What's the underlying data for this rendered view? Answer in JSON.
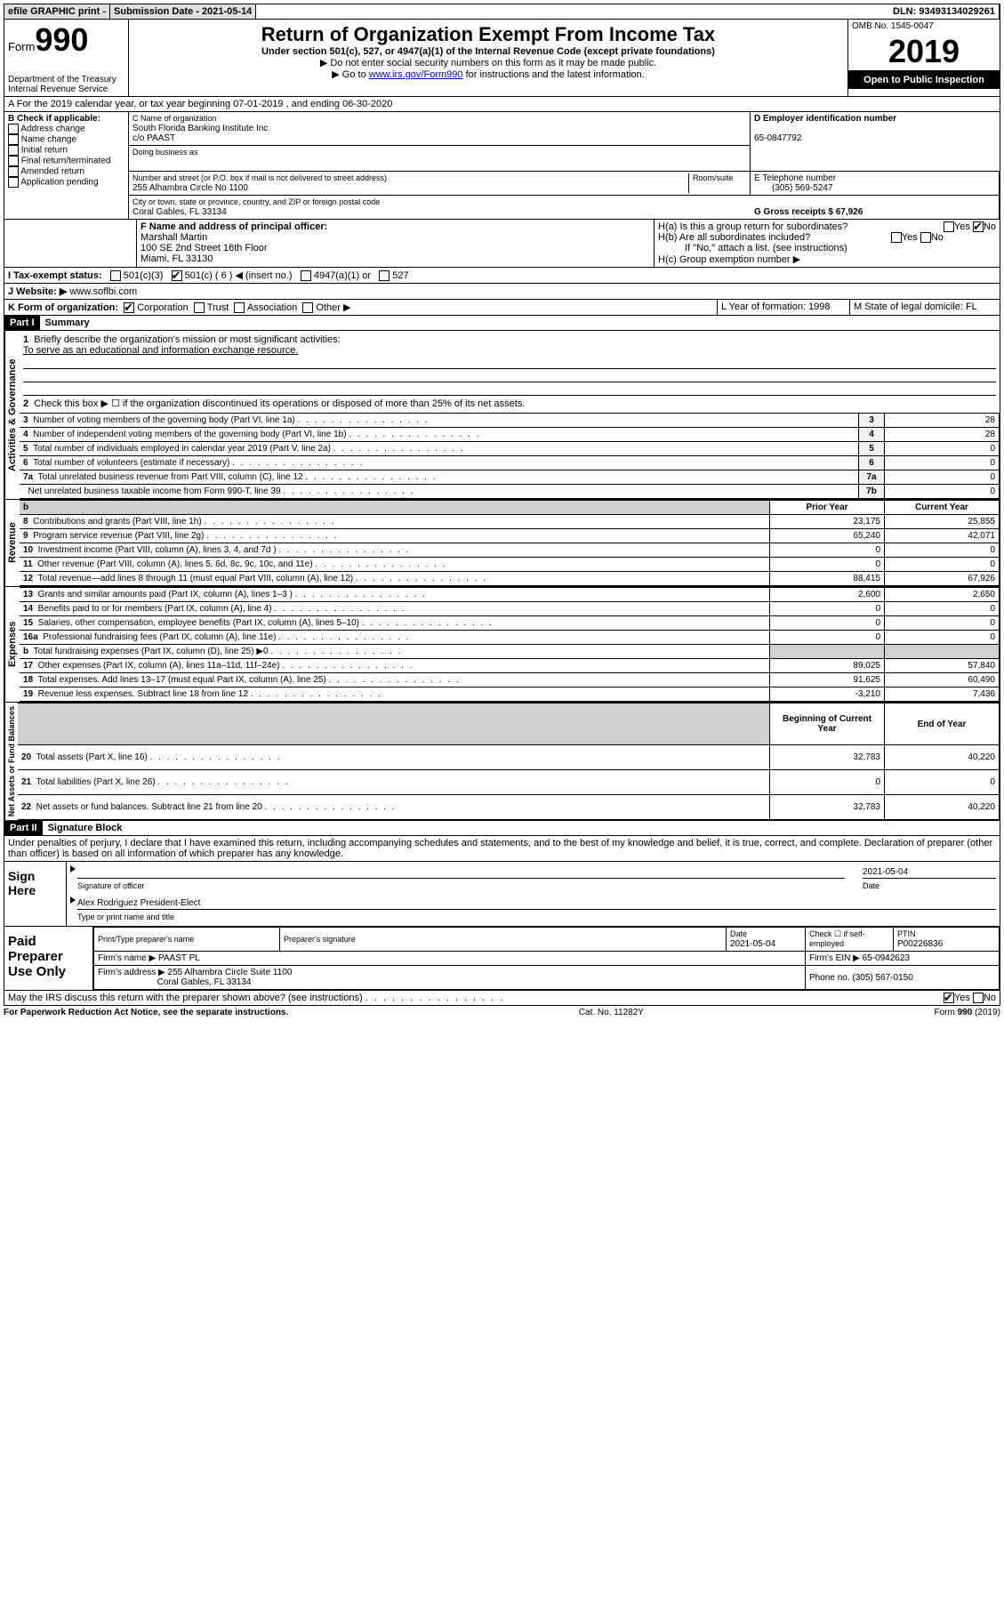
{
  "topbar": {
    "efile": "efile GRAPHIC print -",
    "submission_label": "Submission Date - 2021-05-14",
    "dln": "DLN: 93493134029261"
  },
  "header": {
    "form_text": "Form",
    "form_number": "990",
    "title": "Return of Organization Exempt From Income Tax",
    "subtitle1": "Under section 501(c), 527, or 4947(a)(1) of the Internal Revenue Code (except private foundations)",
    "subtitle2": "▶ Do not enter social security numbers on this form as it may be made public.",
    "subtitle3_prefix": "▶ Go to ",
    "subtitle3_link": "www.irs.gov/Form990",
    "subtitle3_suffix": " for instructions and the latest information.",
    "dept": "Department of the Treasury\nInternal Revenue Service",
    "omb": "OMB No. 1545-0047",
    "year": "2019",
    "inspection": "Open to Public Inspection"
  },
  "section_a": "A For the 2019 calendar year, or tax year beginning 07-01-2019   , and ending 06-30-2020",
  "box_b": {
    "label": "B Check if applicable:",
    "items": [
      "Address change",
      "Name change",
      "Initial return",
      "Final return/terminated",
      "Amended return",
      "Application pending"
    ]
  },
  "box_c": {
    "label": "C Name of organization",
    "name": "South Florida Banking Institute Inc",
    "co": "c/o PAAST",
    "dba_label": "Doing business as",
    "dba": "",
    "street_label": "Number and street (or P.O. box if mail is not delivered to street address)",
    "room_label": "Room/suite",
    "street": "255 Alhambra Circle No 1100",
    "city_label": "City or town, state or province, country, and ZIP or foreign postal code",
    "city": "Coral Gables, FL  33134"
  },
  "box_d": {
    "label": "D Employer identification number",
    "value": "65-0847792"
  },
  "box_e": {
    "label": "E Telephone number",
    "value": "(305) 569-5247"
  },
  "box_g": {
    "label": "G Gross receipts $ 67,926"
  },
  "box_f": {
    "label": "F Name and address of principal officer:",
    "name": "Marshall Martin",
    "addr1": "100 SE 2nd Street 16th Floor",
    "addr2": "Miami, FL  33130"
  },
  "box_h": {
    "ha": "H(a)  Is this a group return for subordinates?",
    "hb": "H(b)  Are all subordinates included?",
    "hb_note": "If \"No,\" attach a list. (see instructions)",
    "hc": "H(c)  Group exemption number ▶"
  },
  "box_i": {
    "label": "I  Tax-exempt status:",
    "opt1": "501(c)(3)",
    "opt2": "501(c) ( 6 ) ◀ (insert no.)",
    "opt3": "4947(a)(1) or",
    "opt4": "527"
  },
  "box_j": {
    "label": "J  Website: ▶",
    "value": "www.soflbi.com"
  },
  "box_k": {
    "label": "K Form of organization:",
    "opts": [
      "Corporation",
      "Trust",
      "Association",
      "Other ▶"
    ]
  },
  "box_l": {
    "label": "L Year of formation: 1998"
  },
  "box_m": {
    "label": "M State of legal domicile: FL"
  },
  "part1": {
    "header": "Part I",
    "title": "Summary",
    "line1_label": "Briefly describe the organization's mission or most significant activities:",
    "line1_text": "To serve as an educational and information exchange resource.",
    "line2": "Check this box ▶ ☐  if the organization discontinued its operations or disposed of more than 25% of its net assets.",
    "vtab1": "Activities & Governance",
    "vtab2": "Revenue",
    "vtab3": "Expenses",
    "vtab4": "Net Assets or Fund Balances",
    "rows_gov": [
      {
        "n": "3",
        "t": "Number of voting members of the governing body (Part VI, line 1a)",
        "l": "3",
        "v": "28"
      },
      {
        "n": "4",
        "t": "Number of independent voting members of the governing body (Part VI, line 1b)",
        "l": "4",
        "v": "28"
      },
      {
        "n": "5",
        "t": "Total number of individuals employed in calendar year 2019 (Part V, line 2a)",
        "l": "5",
        "v": "0"
      },
      {
        "n": "6",
        "t": "Total number of volunteers (estimate if necessary)",
        "l": "6",
        "v": "0"
      },
      {
        "n": "7a",
        "t": "Total unrelated business revenue from Part VIII, column (C), line 12",
        "l": "7a",
        "v": "0"
      },
      {
        "n": "",
        "t": "Net unrelated business taxable income from Form 990-T, line 39",
        "l": "7b",
        "v": "0"
      }
    ],
    "col_prior": "Prior Year",
    "col_current": "Current Year",
    "col_boy": "Beginning of Current Year",
    "col_eoy": "End of Year",
    "rows_rev": [
      {
        "n": "8",
        "t": "Contributions and grants (Part VIII, line 1h)",
        "p": "23,175",
        "c": "25,855"
      },
      {
        "n": "9",
        "t": "Program service revenue (Part VIII, line 2g)",
        "p": "65,240",
        "c": "42,071"
      },
      {
        "n": "10",
        "t": "Investment income (Part VIII, column (A), lines 3, 4, and 7d )",
        "p": "0",
        "c": "0"
      },
      {
        "n": "11",
        "t": "Other revenue (Part VIII, column (A), lines 5, 6d, 8c, 9c, 10c, and 11e)",
        "p": "0",
        "c": "0"
      },
      {
        "n": "12",
        "t": "Total revenue—add lines 8 through 11 (must equal Part VIII, column (A), line 12)",
        "p": "88,415",
        "c": "67,926"
      }
    ],
    "rows_exp": [
      {
        "n": "13",
        "t": "Grants and similar amounts paid (Part IX, column (A), lines 1–3 )",
        "p": "2,600",
        "c": "2,650"
      },
      {
        "n": "14",
        "t": "Benefits paid to or for members (Part IX, column (A), line 4)",
        "p": "0",
        "c": "0"
      },
      {
        "n": "15",
        "t": "Salaries, other compensation, employee benefits (Part IX, column (A), lines 5–10)",
        "p": "0",
        "c": "0"
      },
      {
        "n": "16a",
        "t": "Professional fundraising fees (Part IX, column (A), line 11e)",
        "p": "0",
        "c": "0"
      },
      {
        "n": "b",
        "t": "Total fundraising expenses (Part IX, column (D), line 25) ▶0",
        "p": "shaded",
        "c": "shaded"
      },
      {
        "n": "17",
        "t": "Other expenses (Part IX, column (A), lines 11a–11d, 11f–24e)",
        "p": "89,025",
        "c": "57,840"
      },
      {
        "n": "18",
        "t": "Total expenses. Add lines 13–17 (must equal Part IX, column (A), line 25)",
        "p": "91,625",
        "c": "60,490"
      },
      {
        "n": "19",
        "t": "Revenue less expenses. Subtract line 18 from line 12",
        "p": "-3,210",
        "c": "7,436"
      }
    ],
    "rows_net": [
      {
        "n": "20",
        "t": "Total assets (Part X, line 16)",
        "p": "32,783",
        "c": "40,220"
      },
      {
        "n": "21",
        "t": "Total liabilities (Part X, line 26)",
        "p": "0",
        "c": "0"
      },
      {
        "n": "22",
        "t": "Net assets or fund balances. Subtract line 21 from line 20",
        "p": "32,783",
        "c": "40,220"
      }
    ]
  },
  "part2": {
    "header": "Part II",
    "title": "Signature Block",
    "perjury": "Under penalties of perjury, I declare that I have examined this return, including accompanying schedules and statements, and to the best of my knowledge and belief, it is true, correct, and complete. Declaration of preparer (other than officer) is based on all information of which preparer has any knowledge."
  },
  "sign": {
    "label": "Sign Here",
    "sig_label": "Signature of officer",
    "date": "2021-05-04",
    "date_label": "Date",
    "name": "Alex Rodriguez President-Elect",
    "name_label": "Type or print name and title"
  },
  "paid": {
    "label": "Paid Preparer Use Only",
    "col1": "Print/Type preparer's name",
    "col2": "Preparer's signature",
    "col3_label": "Date",
    "col3": "2021-05-04",
    "col4": "Check ☐ if self-employed",
    "col5_label": "PTIN",
    "col5": "P00226836",
    "firm_name_label": "Firm's name      ▶",
    "firm_name": "PAAST PL",
    "firm_ein_label": "Firm's EIN ▶",
    "firm_ein": "65-0942623",
    "firm_addr_label": "Firm's address ▶",
    "firm_addr1": "255 Alhambra Circle Suite 1100",
    "firm_addr2": "Coral Gables, FL  33134",
    "phone_label": "Phone no.",
    "phone": "(305) 567-0150"
  },
  "discuss": "May the IRS discuss this return with the preparer shown above? (see instructions)",
  "footer": {
    "left": "For Paperwork Reduction Act Notice, see the separate instructions.",
    "mid": "Cat. No. 11282Y",
    "right": "Form 990 (2019)"
  }
}
